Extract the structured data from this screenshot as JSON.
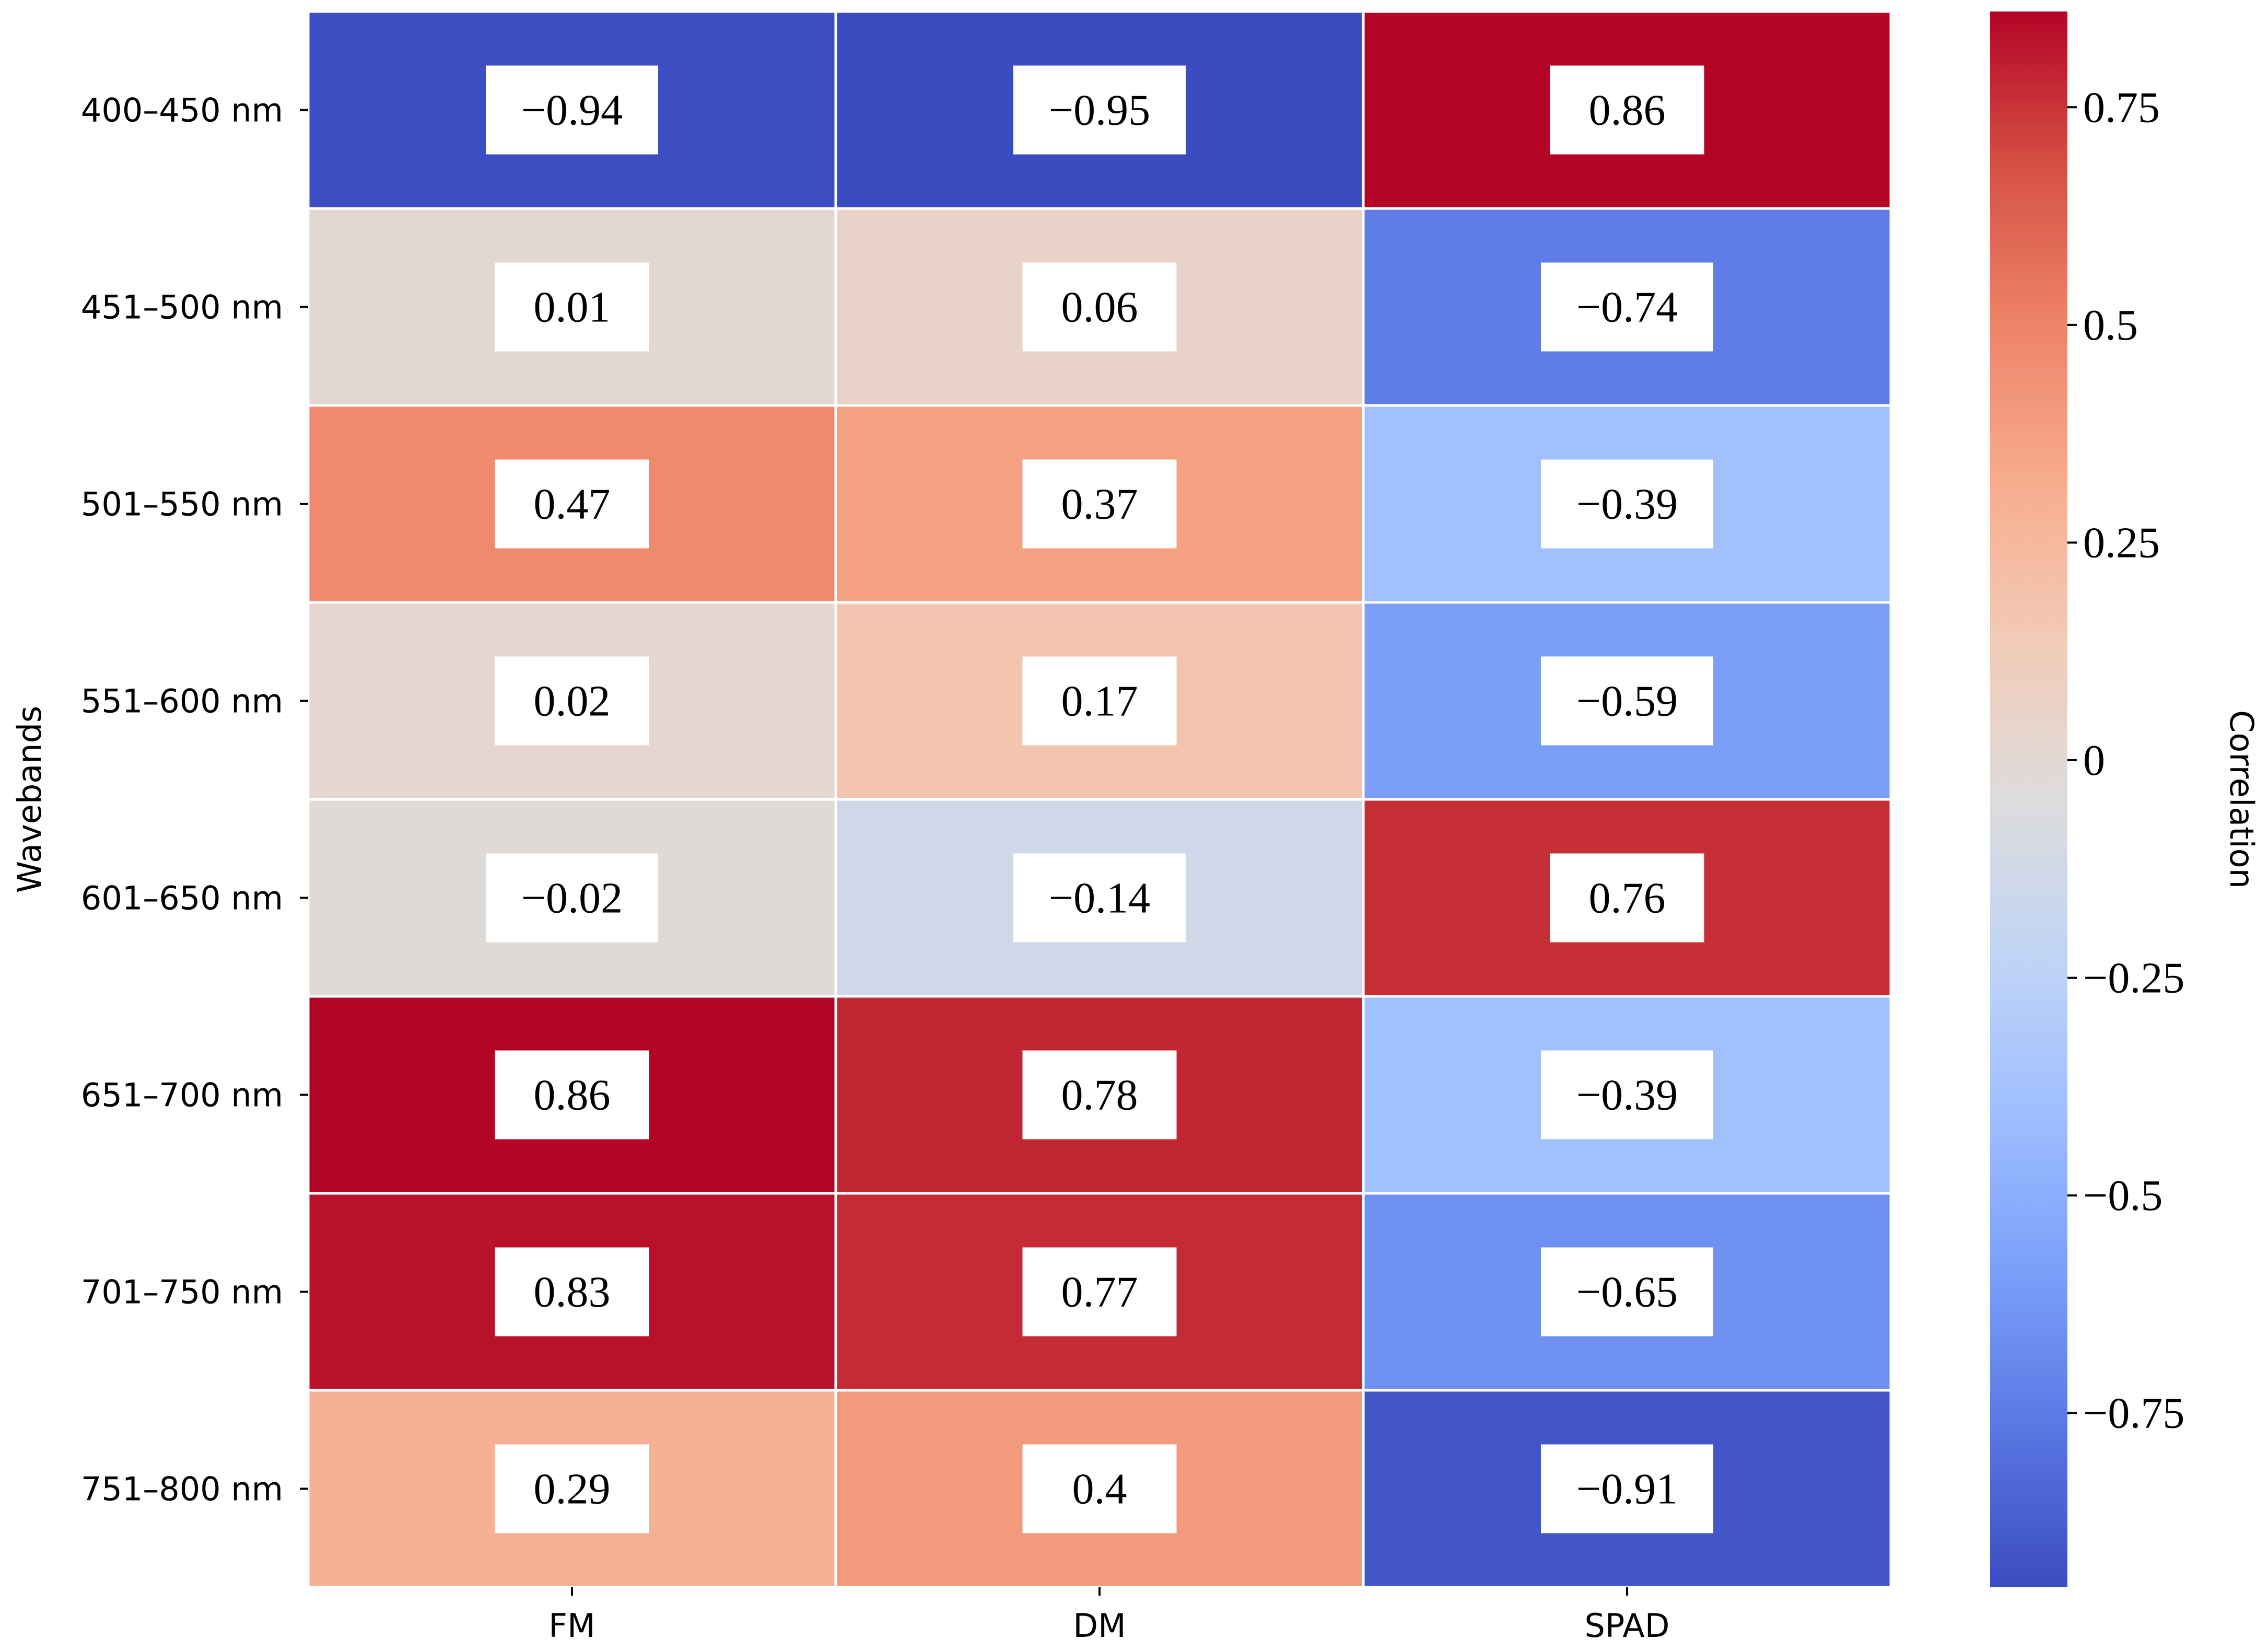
{
  "chart_data": {
    "type": "heatmap",
    "title": "",
    "xlabel": "",
    "ylabel": "Wavebands",
    "x_categories": [
      "FM",
      "DM",
      "SPAD"
    ],
    "y_categories": [
      "400–450 nm",
      "451–500 nm",
      "501–550 nm",
      "551–600 nm",
      "601–650 nm",
      "651–700 nm",
      "701–750 nm",
      "751–800 nm"
    ],
    "values": [
      [
        -0.94,
        -0.95,
        0.86
      ],
      [
        0.01,
        0.06,
        -0.74
      ],
      [
        0.47,
        0.37,
        -0.39
      ],
      [
        0.02,
        0.17,
        -0.59
      ],
      [
        -0.02,
        -0.14,
        0.76
      ],
      [
        0.86,
        0.78,
        -0.39
      ],
      [
        0.83,
        0.77,
        -0.65
      ],
      [
        0.29,
        0.4,
        -0.91
      ]
    ],
    "value_labels": [
      [
        "−0.94",
        "−0.95",
        "0.86"
      ],
      [
        "0.01",
        "0.06",
        "−0.74"
      ],
      [
        "0.47",
        "0.37",
        "−0.39"
      ],
      [
        "0.02",
        "0.17",
        "−0.59"
      ],
      [
        "−0.02",
        "−0.14",
        "0.76"
      ],
      [
        "0.86",
        "0.78",
        "−0.39"
      ],
      [
        "0.83",
        "0.77",
        "−0.65"
      ],
      [
        "0.29",
        "0.4",
        "−0.91"
      ]
    ],
    "colormap": "coolwarm",
    "colormap_stops": [
      "#3b4cc0",
      "#5977e3",
      "#7b9ff9",
      "#9ebeff",
      "#c0d4f5",
      "#dddcdc",
      "#f2cbb7",
      "#f7ac8e",
      "#ee8468",
      "#d65244",
      "#b40426"
    ],
    "vmin": -0.95,
    "vmax": 0.86,
    "colorbar": {
      "label": "Correlation",
      "ticks": [
        0.75,
        0.5,
        0.25,
        0,
        -0.25,
        -0.5,
        -0.75
      ],
      "tick_labels": [
        "0.75",
        "0.5",
        "0.25",
        "0",
        "−0.25",
        "−0.5",
        "−0.75"
      ]
    }
  }
}
